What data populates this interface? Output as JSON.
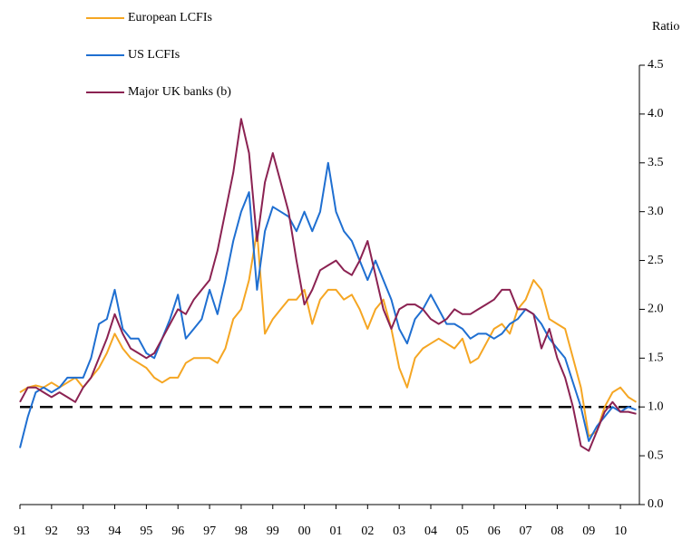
{
  "chart_data": {
    "type": "line",
    "y_axis_label": "Ratio",
    "x": [
      1991,
      1991.25,
      1991.5,
      1991.75,
      1992,
      1992.25,
      1992.5,
      1992.75,
      1993,
      1993.25,
      1993.5,
      1993.75,
      1994,
      1994.25,
      1994.5,
      1994.75,
      1995,
      1995.25,
      1995.5,
      1995.75,
      1996,
      1996.25,
      1996.5,
      1996.75,
      1997,
      1997.25,
      1997.5,
      1997.75,
      1998,
      1998.25,
      1998.5,
      1998.75,
      1999,
      1999.25,
      1999.5,
      1999.75,
      2000,
      2000.25,
      2000.5,
      2000.75,
      2001,
      2001.25,
      2001.5,
      2001.75,
      2002,
      2002.25,
      2002.5,
      2002.75,
      2003,
      2003.25,
      2003.5,
      2003.75,
      2004,
      2004.25,
      2004.5,
      2004.75,
      2005,
      2005.25,
      2005.5,
      2005.75,
      2006,
      2006.25,
      2006.5,
      2006.75,
      2007,
      2007.25,
      2007.5,
      2007.75,
      2008,
      2008.25,
      2008.5,
      2008.75,
      2009,
      2009.25,
      2009.5,
      2009.75,
      2010,
      2010.25,
      2010.5
    ],
    "series": [
      {
        "name": "European LCFIs",
        "color": "#f5a623",
        "values": [
          1.15,
          1.2,
          1.22,
          1.2,
          1.25,
          1.2,
          1.25,
          1.3,
          1.2,
          1.3,
          1.4,
          1.55,
          1.75,
          1.6,
          1.5,
          1.45,
          1.4,
          1.3,
          1.25,
          1.3,
          1.3,
          1.45,
          1.5,
          1.5,
          1.5,
          1.45,
          1.6,
          1.9,
          2.0,
          2.3,
          2.8,
          1.75,
          1.9,
          2.0,
          2.1,
          2.1,
          2.2,
          1.85,
          2.1,
          2.2,
          2.2,
          2.1,
          2.15,
          2.0,
          1.8,
          2.0,
          2.1,
          1.8,
          1.4,
          1.2,
          1.5,
          1.6,
          1.65,
          1.7,
          1.65,
          1.6,
          1.7,
          1.45,
          1.5,
          1.65,
          1.8,
          1.85,
          1.75,
          2.0,
          2.1,
          2.3,
          2.2,
          1.9,
          1.85,
          1.8,
          1.5,
          1.2,
          0.7,
          0.75,
          1.0,
          1.15,
          1.2,
          1.1,
          1.05
        ]
      },
      {
        "name": "US LCFIs",
        "color": "#1f6fd1",
        "values": [
          0.58,
          0.9,
          1.15,
          1.2,
          1.15,
          1.2,
          1.3,
          1.3,
          1.3,
          1.5,
          1.85,
          1.9,
          2.2,
          1.8,
          1.7,
          1.7,
          1.55,
          1.5,
          1.7,
          1.9,
          2.15,
          1.7,
          1.8,
          1.9,
          2.2,
          1.95,
          2.3,
          2.7,
          3.0,
          3.2,
          2.2,
          2.8,
          3.05,
          3.0,
          2.95,
          2.8,
          3.0,
          2.8,
          3.0,
          3.5,
          3.0,
          2.8,
          2.7,
          2.5,
          2.3,
          2.5,
          2.3,
          2.1,
          1.8,
          1.65,
          1.9,
          2.0,
          2.15,
          2.0,
          1.85,
          1.85,
          1.8,
          1.7,
          1.75,
          1.75,
          1.7,
          1.75,
          1.85,
          1.9,
          2.0,
          1.95,
          1.85,
          1.7,
          1.6,
          1.5,
          1.25,
          1.0,
          0.65,
          0.8,
          0.9,
          1.0,
          0.95,
          1.0,
          0.97
        ]
      },
      {
        "name": "Major UK banks (b)",
        "color": "#8b2252",
        "values": [
          1.05,
          1.2,
          1.2,
          1.15,
          1.1,
          1.15,
          1.1,
          1.05,
          1.2,
          1.3,
          1.5,
          1.7,
          1.95,
          1.75,
          1.6,
          1.55,
          1.5,
          1.55,
          1.7,
          1.85,
          2.0,
          1.95,
          2.1,
          2.2,
          2.3,
          2.6,
          3.0,
          3.4,
          3.95,
          3.6,
          2.7,
          3.3,
          3.6,
          3.3,
          3.0,
          2.5,
          2.05,
          2.2,
          2.4,
          2.45,
          2.5,
          2.4,
          2.35,
          2.5,
          2.7,
          2.35,
          2.0,
          1.8,
          2.0,
          2.05,
          2.05,
          2.0,
          1.9,
          1.85,
          1.9,
          2.0,
          1.95,
          1.95,
          2.0,
          2.05,
          2.1,
          2.2,
          2.2,
          2.0,
          2.0,
          1.95,
          1.6,
          1.8,
          1.5,
          1.3,
          1.0,
          0.6,
          0.55,
          0.75,
          0.95,
          1.05,
          0.95,
          0.95,
          0.93
        ]
      }
    ],
    "reference_line": 1,
    "xlim": [
      1991,
      2010.6
    ],
    "xticks": [
      {
        "value": 1991,
        "label": "91"
      },
      {
        "value": 1992,
        "label": "92"
      },
      {
        "value": 1993,
        "label": "93"
      },
      {
        "value": 1994,
        "label": "94"
      },
      {
        "value": 1995,
        "label": "95"
      },
      {
        "value": 1996,
        "label": "96"
      },
      {
        "value": 1997,
        "label": "97"
      },
      {
        "value": 1998,
        "label": "98"
      },
      {
        "value": 1999,
        "label": "99"
      },
      {
        "value": 2000,
        "label": "00"
      },
      {
        "value": 2001,
        "label": "01"
      },
      {
        "value": 2002,
        "label": "02"
      },
      {
        "value": 2003,
        "label": "03"
      },
      {
        "value": 2004,
        "label": "04"
      },
      {
        "value": 2005,
        "label": "05"
      },
      {
        "value": 2006,
        "label": "06"
      },
      {
        "value": 2007,
        "label": "07"
      },
      {
        "value": 2008,
        "label": "08"
      },
      {
        "value": 2009,
        "label": "09"
      },
      {
        "value": 2010,
        "label": "10"
      }
    ],
    "ylim": [
      0,
      4.5
    ],
    "yticks": [
      {
        "value": 0,
        "label": "0.0"
      },
      0.5,
      {
        "value": 1,
        "label": "1.0"
      },
      1.5,
      {
        "value": 2,
        "label": "2.0"
      },
      2.5,
      {
        "value": 3,
        "label": "3.0"
      },
      3.5,
      {
        "value": 4,
        "label": "4.0"
      },
      4.5
    ]
  }
}
